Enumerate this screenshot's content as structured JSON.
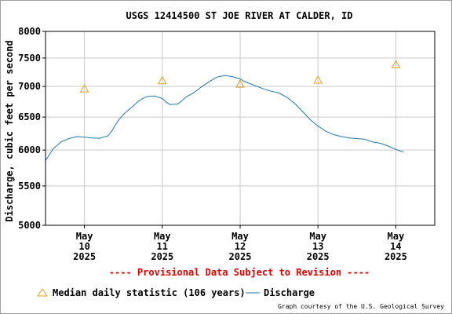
{
  "chart_data": {
    "type": "line",
    "title": "USGS 12414500 ST JOE RIVER AT CALDER, ID",
    "ylabel": "Discharge, cubic feet per second",
    "xlabel": "",
    "ylim": [
      5000,
      8000
    ],
    "y_scale": "log",
    "grid": true,
    "y_ticks": [
      "5000",
      "5500",
      "6000",
      "6500",
      "7000",
      "7500",
      "8000"
    ],
    "x_ticks": [
      {
        "month": "May",
        "day": "10",
        "year": "2025"
      },
      {
        "month": "May",
        "day": "11",
        "year": "2025"
      },
      {
        "month": "May",
        "day": "12",
        "year": "2025"
      },
      {
        "month": "May",
        "day": "13",
        "year": "2025"
      },
      {
        "month": "May",
        "day": "14",
        "year": "2025"
      }
    ],
    "x_range_days": [
      9.5,
      14.5
    ],
    "series": [
      {
        "name": "Discharge",
        "color": "#1f77a8",
        "x": [
          9.5,
          9.6,
          9.7,
          9.8,
          9.9,
          10.0,
          10.1,
          10.2,
          10.3,
          10.35,
          10.4,
          10.45,
          10.5,
          10.6,
          10.7,
          10.75,
          10.8,
          10.9,
          11.0,
          11.05,
          11.1,
          11.2,
          11.25,
          11.3,
          11.4,
          11.5,
          11.6,
          11.7,
          11.8,
          11.9,
          12.0,
          12.05,
          12.1,
          12.2,
          12.3,
          12.4,
          12.5,
          12.6,
          12.7,
          12.8,
          12.9,
          13.0,
          13.1,
          13.2,
          13.3,
          13.4,
          13.5,
          13.6,
          13.7,
          13.8,
          13.9,
          14.0,
          14.1
        ],
        "values": [
          5850,
          6020,
          6120,
          6170,
          6200,
          6190,
          6180,
          6175,
          6210,
          6280,
          6380,
          6470,
          6540,
          6650,
          6760,
          6800,
          6830,
          6840,
          6800,
          6740,
          6700,
          6710,
          6760,
          6820,
          6890,
          6990,
          7080,
          7160,
          7190,
          7170,
          7130,
          7090,
          7060,
          7010,
          6960,
          6920,
          6890,
          6820,
          6720,
          6590,
          6460,
          6360,
          6280,
          6230,
          6200,
          6180,
          6170,
          6160,
          6120,
          6100,
          6060,
          6010,
          5970
        ]
      },
      {
        "name": "Median daily statistic (106 years)",
        "color": "#e0a020",
        "x": [
          10.0,
          11.0,
          12.0,
          13.0,
          14.0
        ],
        "values": [
          6960,
          7100,
          7040,
          7110,
          7380
        ]
      }
    ]
  },
  "provisional_note": "---- Provisional Data Subject to Revision ----",
  "credit": "Graph courtesy of the U.S. Geological Survey"
}
